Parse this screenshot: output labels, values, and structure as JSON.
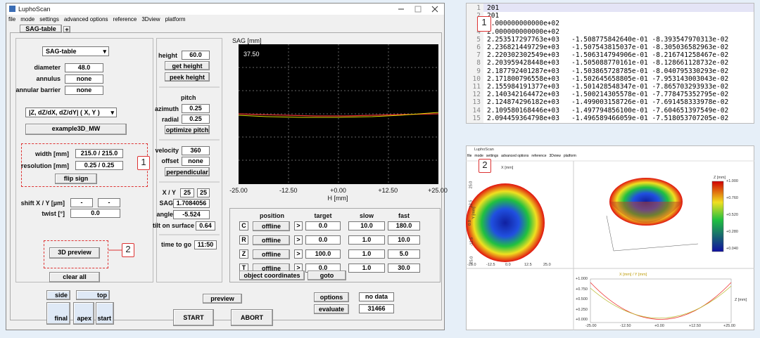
{
  "window": {
    "title": "LuphoScan",
    "menu": [
      "file",
      "mode",
      "settings",
      "advanced options",
      "reference",
      "3Dview",
      "platform"
    ],
    "tabs": [
      "SAG-table",
      "+"
    ],
    "profile_select": "SAG-table",
    "geometry": [
      {
        "label": "diameter",
        "value": "48.0"
      },
      {
        "label": "annulus",
        "value": "none"
      },
      {
        "label": "annular barrier",
        "value": "none"
      }
    ],
    "output_select": "|Z, dZ/dX, dZ/dY| ( X, Y )",
    "example_button": "example3D_MW",
    "width": {
      "label": "width [mm]",
      "value": "215.0 / 215.0"
    },
    "resolution": {
      "label": "resolution [mm]",
      "value": "0.25 / 0.25"
    },
    "flip_button": "flip sign",
    "shift": {
      "label": "shift X / Y [µm]",
      "values": [
        "-",
        "-"
      ]
    },
    "twist": {
      "label": "twist [°]",
      "value": "0.0"
    },
    "preview_3d_button": "3D preview",
    "clear_button": "clear all",
    "height": {
      "label": "height",
      "value": "60.0"
    },
    "get_height": "get height",
    "peek_height": "peek height",
    "pitch": {
      "heading": "pitch",
      "azimuth": {
        "label": "azimuth",
        "value": "0.25"
      },
      "radial": {
        "label": "radial",
        "value": "0.25"
      },
      "button": "optimize pitch"
    },
    "velocity": {
      "label": "velocity",
      "value": "360"
    },
    "offset": {
      "label": "offset",
      "value": "none"
    },
    "perpendicular": "perpendicular",
    "xy": {
      "label": "X / Y",
      "values": [
        "25",
        "25"
      ]
    },
    "sag": {
      "label": "SAG",
      "value": "1.7084056"
    },
    "angle": {
      "label": "angle",
      "value": "-5.524"
    },
    "tilt": {
      "label": "tilt on surface",
      "value": "0.64"
    },
    "time_to_go": {
      "label": "time to go",
      "value": "11:50"
    },
    "plot": {
      "y_label": "SAG [mm]",
      "y_top": "37.50",
      "x_ticks": [
        "-25.00",
        "-12.50",
        "+0.00",
        "+12.50",
        "+25.00"
      ],
      "x_label": "H [mm]"
    },
    "axes_table": {
      "headers": [
        "position",
        "target",
        "slow",
        "fast"
      ],
      "rows": [
        [
          "C",
          "offline",
          ">",
          "0.0",
          "10.0",
          "180.0"
        ],
        [
          "R",
          "offline",
          ">",
          "0.0",
          "1.0",
          "10.0"
        ],
        [
          "Z",
          "offline",
          ">",
          "100.0",
          "1.0",
          "5.0"
        ],
        [
          "T",
          "offline",
          ">",
          "0.0",
          "1.0",
          "30.0"
        ]
      ],
      "object_coordinates": "object coordinates",
      "goto": "goto"
    },
    "bottom": {
      "side": "side",
      "top": "top",
      "final": "final",
      "apex": "apex",
      "start": "start",
      "preview": "preview",
      "start_run": "START",
      "abort": "ABORT",
      "options": "options",
      "status": "no data",
      "evaluate": "evaluate",
      "count": "31466"
    },
    "callouts": [
      "1",
      "2"
    ]
  },
  "file_view": {
    "callout": "1",
    "lines": [
      {
        "n": "1",
        "text": "201"
      },
      {
        "n": "2",
        "text": "201"
      },
      {
        "n": "3",
        "text": "2.000000000000e+02"
      },
      {
        "n": "4",
        "text": "2.000000000000e+02"
      },
      {
        "n": "5",
        "text": "2.253517297763e+03   -1.508775842640e-01 -8.393547970313e-02"
      },
      {
        "n": "6",
        "text": "2.236821449729e+03   -1.507543815037e-01 -8.305036582963e-02"
      },
      {
        "n": "7",
        "text": "2.220302302549e+03   -1.506314794906e-01 -8.216741258467e-02"
      },
      {
        "n": "8",
        "text": "2.203959428448e+03   -1.505088770161e-01 -8.128661128732e-02"
      },
      {
        "n": "9",
        "text": "2.187792401287e+03   -1.503865728785e-01 -8.040795330293e-02"
      },
      {
        "n": "10",
        "text": "2.171800796558e+03   -1.502645658805e-01 -7.953143003043e-02"
      },
      {
        "n": "11",
        "text": "2.155984191377e+03   -1.501428548347e-01 -7.865703293933e-02"
      },
      {
        "n": "12",
        "text": "2.140342164472e+03   -1.500214305578e-01 -7.778475352795e-02"
      },
      {
        "n": "13",
        "text": "2.124874296182e+03   -1.499003158726e-01 -7.691458333978e-02"
      },
      {
        "n": "14",
        "text": "2.109580168446e+03   -1.497794856100e-01 -7.604651397549e-02"
      },
      {
        "n": "15",
        "text": "2.094459364798e+03   -1.496589466059e-01 -7.518053707205e-02"
      }
    ]
  },
  "preview_window": {
    "title": "LuphoScan",
    "menu": [
      "file",
      "mode",
      "settings",
      "advanced options",
      "reference",
      "3Dview",
      "platform"
    ],
    "callout": "2",
    "top_view": {
      "x_label": "X [mm]",
      "y_label": "Y [mm]",
      "ticks": [
        "-25.0",
        "-12.5",
        "0.0",
        "12.5",
        "25.0"
      ]
    },
    "colorbar": {
      "label": "Z [mm]",
      "ticks": [
        "+1.000",
        "+0.760",
        "+0.520",
        "+0.280",
        "+0.040"
      ]
    },
    "profile": {
      "legend": "X [mm]  /  Y [mm]",
      "y_ticks": [
        "+1.000",
        "+0.750",
        "+0.500",
        "+0.250",
        "+0.000"
      ],
      "x_ticks": [
        "-25.00",
        "-12.50",
        "+0.00",
        "+12.50",
        "+25.00"
      ],
      "z_label": "Z [mm]"
    }
  }
}
